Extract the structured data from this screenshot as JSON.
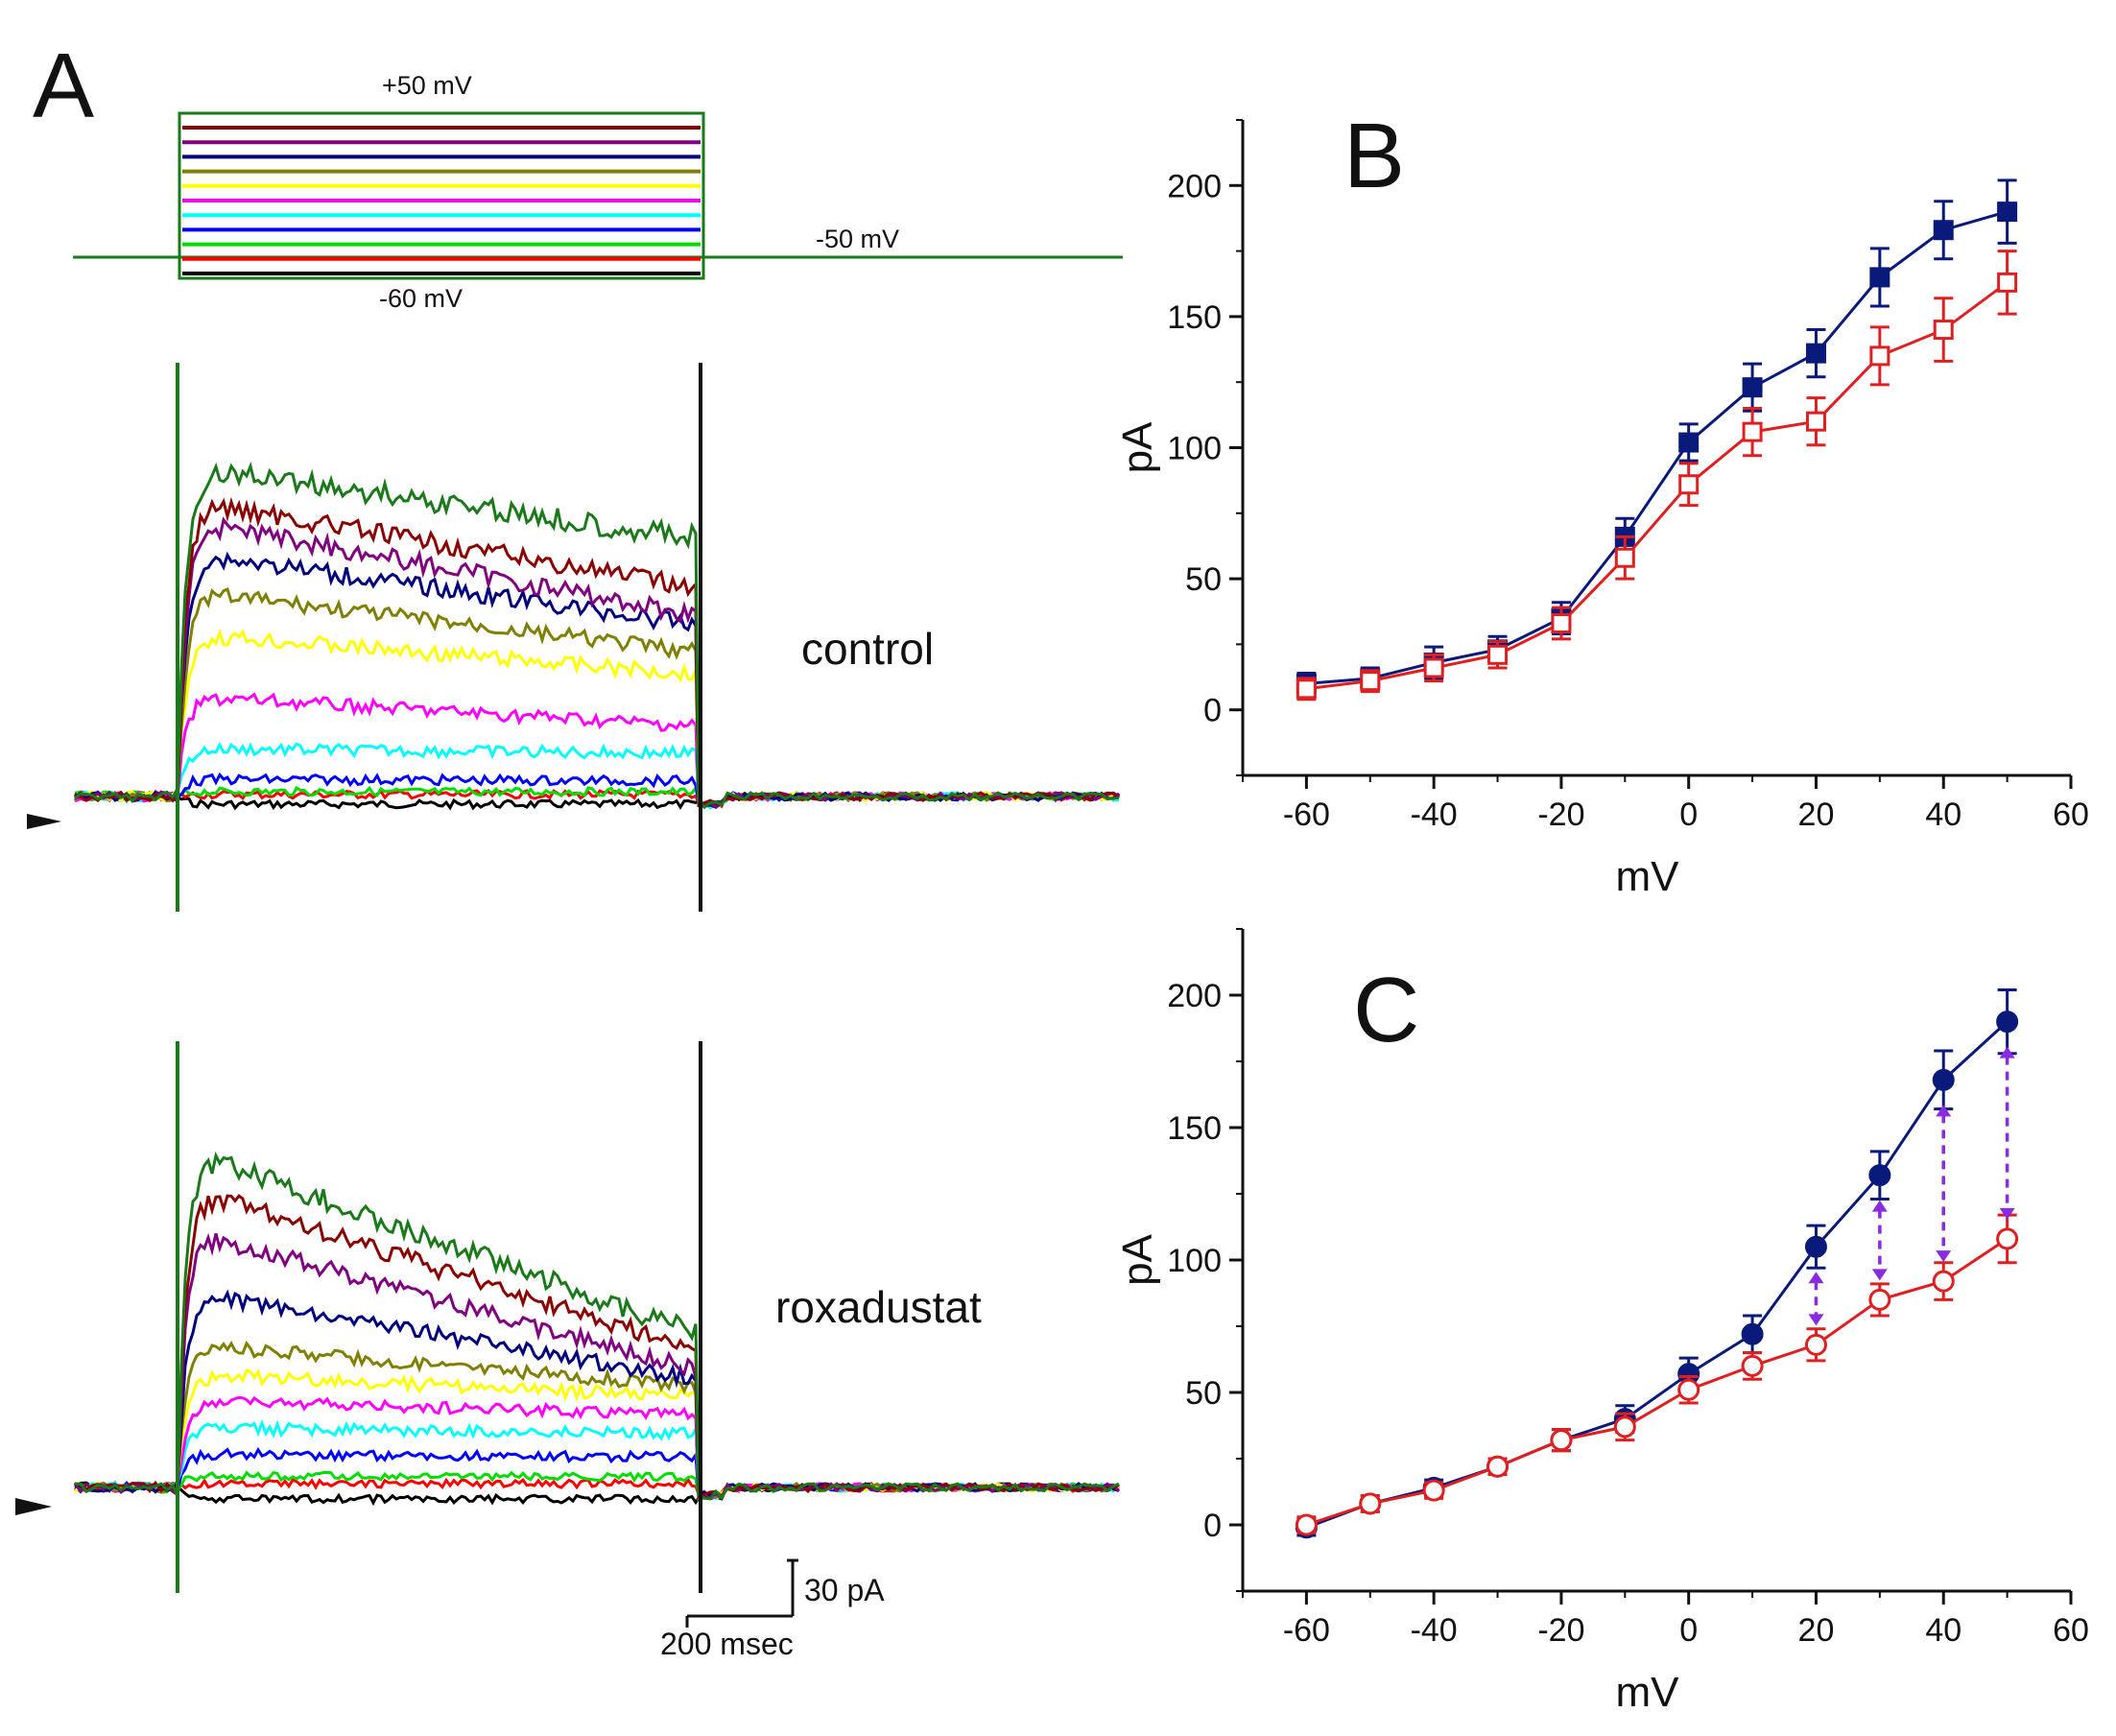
{
  "panel_labels": {
    "a": "A",
    "b": "B",
    "c": "C"
  },
  "protocol": {
    "top_label": "+50 mV",
    "holding_label": "-50 mV",
    "bottom_label": "-60 mV",
    "step_colors": [
      "#8b0000",
      "#800080",
      "#00007f",
      "#808000",
      "#ffff00",
      "#ff00ff",
      "#00ffff",
      "#0000ff",
      "#00dd00",
      "#ff0000",
      "#000000"
    ],
    "frame_color": "#1a7a1a"
  },
  "traces": {
    "control_label": "control",
    "roxadustat_label": "roxadustat",
    "scale_current": "30 pA",
    "scale_time": "200 msec"
  },
  "colors": {
    "control_series": "#0a1a7a",
    "roxadustat_series": "#e02020",
    "arrow": "#8a2be2"
  },
  "chart_data": [
    {
      "type": "line",
      "panel": "B",
      "xlabel": "mV",
      "ylabel": "pA",
      "xlim": [
        -70,
        60
      ],
      "ylim": [
        -25,
        225
      ],
      "xticks": [
        -60,
        -40,
        -20,
        0,
        20,
        40,
        60
      ],
      "yticks": [
        0,
        50,
        100,
        150,
        200
      ],
      "x": [
        -60,
        -50,
        -40,
        -30,
        -20,
        -10,
        0,
        10,
        20,
        30,
        40,
        50
      ],
      "series": [
        {
          "name": "control",
          "marker": "filled-square",
          "values": [
            10,
            12,
            18,
            23,
            35,
            66,
            102,
            123,
            136,
            165,
            183,
            190
          ],
          "errors": [
            4,
            4,
            6,
            5,
            6,
            7,
            7,
            9,
            9,
            11,
            11,
            12
          ]
        },
        {
          "name": "roxadustat",
          "marker": "open-square",
          "values": [
            8,
            11,
            16,
            21,
            33,
            58,
            86,
            106,
            110,
            135,
            145,
            163
          ],
          "errors": [
            4,
            4,
            5,
            5,
            6,
            8,
            8,
            9,
            9,
            11,
            12,
            12
          ]
        }
      ]
    },
    {
      "type": "line",
      "panel": "C",
      "xlabel": "mV",
      "ylabel": "pA",
      "xlim": [
        -70,
        60
      ],
      "ylim": [
        -25,
        225
      ],
      "xticks": [
        -60,
        -40,
        -20,
        0,
        20,
        40,
        60
      ],
      "yticks": [
        0,
        50,
        100,
        150,
        200
      ],
      "x": [
        -60,
        -50,
        -40,
        -30,
        -20,
        -10,
        0,
        10,
        20,
        30,
        40,
        50
      ],
      "series": [
        {
          "name": "control",
          "marker": "filled-circle",
          "values": [
            -1,
            8,
            14,
            22,
            32,
            40,
            57,
            72,
            105,
            132,
            168,
            190
          ],
          "errors": [
            3,
            3,
            3,
            3,
            4,
            5,
            6,
            7,
            8,
            9,
            11,
            12
          ]
        },
        {
          "name": "roxadustat",
          "marker": "open-circle",
          "values": [
            0,
            8,
            13,
            22,
            32,
            37,
            51,
            60,
            68,
            85,
            92,
            108
          ],
          "errors": [
            3,
            3,
            3,
            3,
            4,
            5,
            5,
            5,
            6,
            6,
            7,
            9
          ]
        }
      ],
      "annotations": "dashed double-headed arrows between series at 20, 30, 40, 50 mV"
    }
  ]
}
